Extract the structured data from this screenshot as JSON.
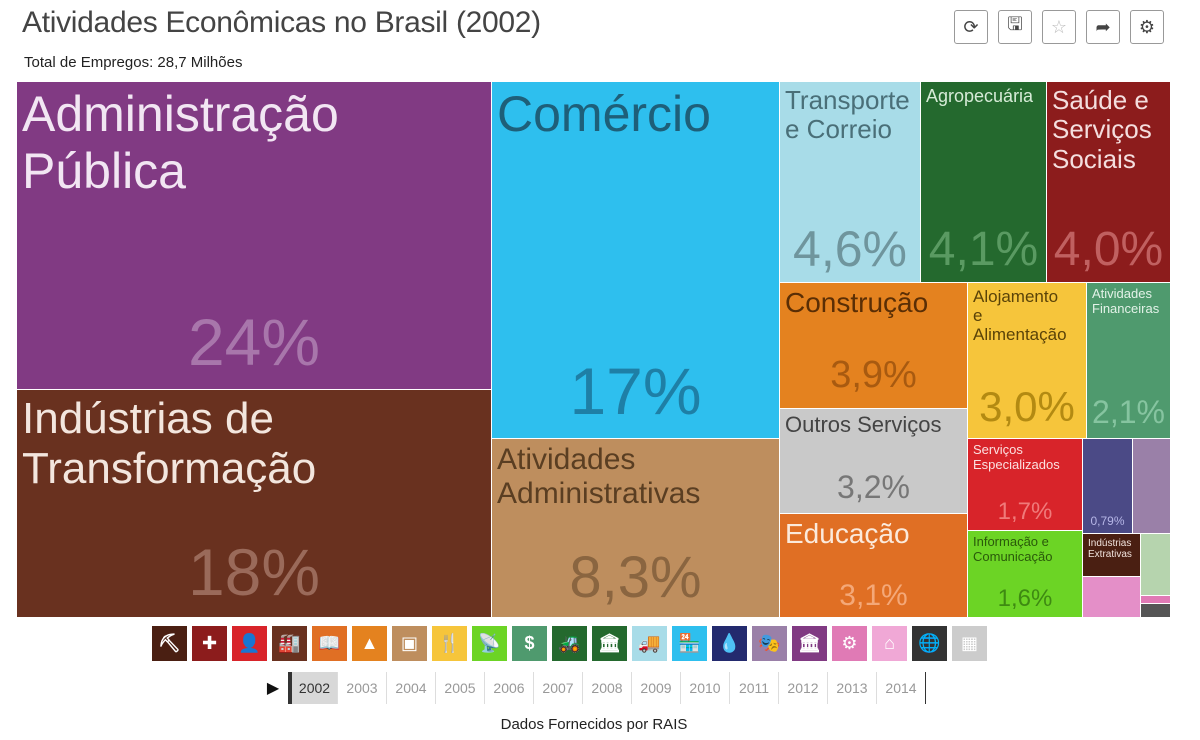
{
  "header": {
    "title": "Atividades Econômicas no Brasil (2002)",
    "subtitle": "Total de Empregos: 28,7 Milhões"
  },
  "toolbar": {
    "buttons": [
      {
        "name": "refresh-button",
        "icon": "refresh-icon",
        "glyph": "⟳"
      },
      {
        "name": "save-button",
        "icon": "save-icon",
        "glyph": "🖫"
      },
      {
        "name": "favorite-button",
        "icon": "star-icon",
        "glyph": "☆"
      },
      {
        "name": "share-button",
        "icon": "share-arrow-icon",
        "glyph": "➦"
      },
      {
        "name": "settings-button",
        "icon": "gears-icon",
        "glyph": "⚙"
      }
    ]
  },
  "chart_data": {
    "type": "treemap",
    "title": "Atividades Econômicas no Brasil (2002)",
    "total_label": "Total de Empregos: 28,7 Milhões",
    "nodes": [
      {
        "label": "Administração\nPública",
        "value_label": "24%",
        "value": 24,
        "color": "#813a83",
        "text_color": "#f2e6f3",
        "value_color": "#a876ab"
      },
      {
        "label": "Indústrias de\nTransformação",
        "value_label": "18%",
        "value": 18,
        "color": "#69311f",
        "text_color": "#f3e6de",
        "value_color": "#9a6a5a"
      },
      {
        "label": "Comércio",
        "value_label": "17%",
        "value": 17,
        "color": "#2ebfee",
        "text_color": "#1e5f79",
        "value_color": "#1e7fa6"
      },
      {
        "label": "Atividades\nAdministrativas",
        "value_label": "8,3%",
        "value": 8.3,
        "color": "#be8e5e",
        "text_color": "#5a3e22",
        "value_color": "#8a6540"
      },
      {
        "label": "Transporte\ne Correio",
        "value_label": "4,6%",
        "value": 4.6,
        "color": "#a8dce8",
        "text_color": "#4a6f78",
        "value_color": "#6f959d"
      },
      {
        "label": "Agropecuária",
        "value_label": "4,1%",
        "value": 4.1,
        "color": "#24692e",
        "text_color": "#d6ebd7",
        "value_color": "#5a9a62"
      },
      {
        "label": "Saúde e\nServiços\nSociais",
        "value_label": "4,0%",
        "value": 4.0,
        "color": "#8c1c1c",
        "text_color": "#f4dede",
        "value_color": "#c06060"
      },
      {
        "label": "Construção",
        "value_label": "3,9%",
        "value": 3.9,
        "color": "#e4821f",
        "text_color": "#5a2e05",
        "value_color": "#a85a10"
      },
      {
        "label": "Alojamento\ne\nAlimentação",
        "value_label": "3,0%",
        "value": 3.0,
        "color": "#f6c53b",
        "text_color": "#5a4308",
        "value_color": "#b38a12"
      },
      {
        "label": "Atividades\nFinanceiras",
        "value_label": "2,1%",
        "value": 2.1,
        "color": "#4f9a6e",
        "text_color": "#e3f2e8",
        "value_color": "#86c4a0"
      },
      {
        "label": "Outros Serviços",
        "value_label": "3,2%",
        "value": 3.2,
        "color": "#c9c9c9",
        "text_color": "#444",
        "value_color": "#777"
      },
      {
        "label": "Serviços\nEspecializados",
        "value_label": "1,7%",
        "value": 1.7,
        "color": "#d8242a",
        "text_color": "#fbe0e0",
        "value_color": "#f07a7a"
      },
      {
        "label": "Educação",
        "value_label": "3,1%",
        "value": 3.1,
        "color": "#e06f24",
        "text_color": "#fbeadc",
        "value_color": "#f4a878"
      },
      {
        "label": "Informação e\nComunicação",
        "value_label": "1,6%",
        "value": 1.6,
        "color": "#6cd425",
        "text_color": "#2a5a0a",
        "value_color": "#3e8a12"
      },
      {
        "label": "",
        "value_label": "0,79%",
        "value": 0.79,
        "color": "#4b4a86",
        "text_color": "#dde",
        "value_color": "#b6b6e6"
      },
      {
        "label": "",
        "value_label": "",
        "value": null,
        "color": "#9a80a8",
        "text_color": "#fff",
        "value_color": "#fff"
      },
      {
        "label": "Indústrias\nExtrativas",
        "value_label": "",
        "value": null,
        "color": "#4a1f12",
        "text_color": "#f0e2dc",
        "value_color": "#fff"
      },
      {
        "label": "",
        "value_label": "",
        "value": null,
        "color": "#b6d4ae",
        "text_color": "#fff",
        "value_color": "#fff"
      },
      {
        "label": "",
        "value_label": "",
        "value": null,
        "color": "#e48fc8",
        "text_color": "#fff",
        "value_color": "#fff"
      },
      {
        "label": "",
        "value_label": "",
        "value": null,
        "color": "#e07ab5",
        "text_color": "#fff",
        "value_color": "#fff"
      },
      {
        "label": "",
        "value_label": "",
        "value": null,
        "color": "#555555",
        "text_color": "#fff",
        "value_color": "#fff"
      }
    ]
  },
  "sector_icons": [
    {
      "icon": "pickaxe-icon",
      "color": "#4a1f12",
      "glyph": "⛏"
    },
    {
      "icon": "health-cross-icon",
      "color": "#8c1c1c",
      "glyph": "✚"
    },
    {
      "icon": "person-icon",
      "color": "#d8242a",
      "glyph": "👤"
    },
    {
      "icon": "factory-icon",
      "color": "#69311f",
      "glyph": "🏭"
    },
    {
      "icon": "book-icon",
      "color": "#e06f24",
      "glyph": "📖"
    },
    {
      "icon": "cone-icon",
      "color": "#e4821f",
      "glyph": "▲"
    },
    {
      "icon": "desk-icon",
      "color": "#be8e5e",
      "glyph": "▣"
    },
    {
      "icon": "fork-knife-icon",
      "color": "#f6c53b",
      "glyph": "🍴"
    },
    {
      "icon": "antenna-icon",
      "color": "#6cd425",
      "glyph": "📡"
    },
    {
      "icon": "money-house-icon",
      "color": "#4f9a6e",
      "glyph": "$"
    },
    {
      "icon": "tractor-icon",
      "color": "#24692e",
      "glyph": "🚜"
    },
    {
      "icon": "bank-icon",
      "color": "#24692e",
      "glyph": "🏛"
    },
    {
      "icon": "truck-icon",
      "color": "#a8dce8",
      "glyph": "🚚"
    },
    {
      "icon": "store-icon",
      "color": "#2ebfee",
      "glyph": "🏪"
    },
    {
      "icon": "water-drop-icon",
      "color": "#232a6e",
      "glyph": "💧"
    },
    {
      "icon": "theater-masks-icon",
      "color": "#9a80a8",
      "glyph": "🎭"
    },
    {
      "icon": "public-building-icon",
      "color": "#813a83",
      "glyph": "🏛"
    },
    {
      "icon": "gear-circle-icon",
      "color": "#e07ab5",
      "glyph": "⚙"
    },
    {
      "icon": "home-icon",
      "color": "#f0a8d6",
      "glyph": "⌂"
    },
    {
      "icon": "globe-icon",
      "color": "#333333",
      "glyph": "🌐"
    },
    {
      "icon": "boxes-icon",
      "color": "#cccccc",
      "glyph": "▦"
    }
  ],
  "timeline": {
    "play_glyph": "▶",
    "years": [
      "2002",
      "2003",
      "2004",
      "2005",
      "2006",
      "2007",
      "2008",
      "2009",
      "2010",
      "2011",
      "2012",
      "2013",
      "2014"
    ],
    "active_year": "2002"
  },
  "footer": {
    "source": "Dados Fornecidos por RAIS"
  }
}
